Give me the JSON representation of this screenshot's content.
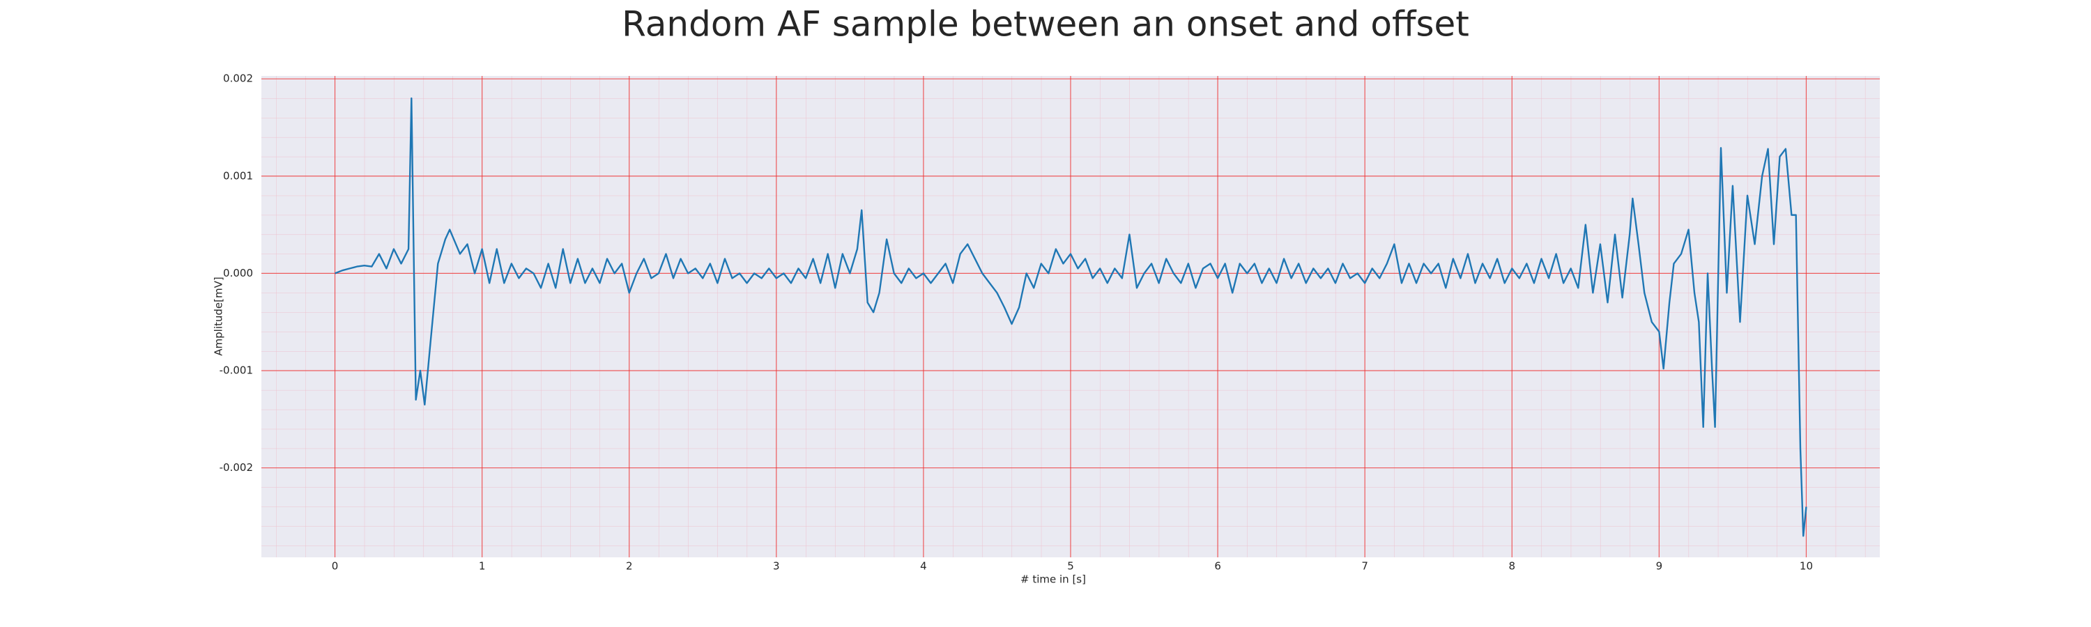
{
  "chart_data": {
    "type": "line",
    "title": "Random AF sample between an onset and offset",
    "xlabel": "# time in [s]",
    "ylabel": "Amplitude[mV]",
    "color": "#1f77b4",
    "x": [
      0,
      0.05,
      0.1,
      0.15,
      0.2,
      0.25,
      0.3,
      0.35,
      0.4,
      0.45,
      0.5,
      0.52,
      0.55,
      0.58,
      0.61,
      0.65,
      0.7,
      0.75,
      0.78,
      0.85,
      0.9,
      0.95,
      1.0,
      1.05,
      1.1,
      1.15,
      1.2,
      1.25,
      1.3,
      1.35,
      1.4,
      1.45,
      1.5,
      1.55,
      1.6,
      1.65,
      1.7,
      1.75,
      1.8,
      1.85,
      1.9,
      1.95,
      2.0,
      2.05,
      2.1,
      2.15,
      2.2,
      2.25,
      2.3,
      2.35,
      2.4,
      2.45,
      2.5,
      2.55,
      2.6,
      2.65,
      2.7,
      2.75,
      2.8,
      2.85,
      2.9,
      2.95,
      3.0,
      3.05,
      3.1,
      3.15,
      3.2,
      3.25,
      3.3,
      3.35,
      3.4,
      3.45,
      3.5,
      3.55,
      3.58,
      3.62,
      3.66,
      3.7,
      3.75,
      3.8,
      3.85,
      3.9,
      3.95,
      4.0,
      4.05,
      4.1,
      4.15,
      4.2,
      4.25,
      4.3,
      4.35,
      4.4,
      4.45,
      4.5,
      4.55,
      4.6,
      4.65,
      4.7,
      4.75,
      4.8,
      4.85,
      4.9,
      4.95,
      5.0,
      5.05,
      5.1,
      5.15,
      5.2,
      5.25,
      5.3,
      5.35,
      5.4,
      5.45,
      5.5,
      5.55,
      5.6,
      5.65,
      5.7,
      5.75,
      5.8,
      5.85,
      5.9,
      5.95,
      6.0,
      6.05,
      6.1,
      6.15,
      6.2,
      6.25,
      6.3,
      6.35,
      6.4,
      6.45,
      6.5,
      6.55,
      6.6,
      6.65,
      6.7,
      6.75,
      6.8,
      6.85,
      6.9,
      6.95,
      7.0,
      7.05,
      7.1,
      7.15,
      7.2,
      7.25,
      7.3,
      7.35,
      7.4,
      7.45,
      7.5,
      7.55,
      7.6,
      7.65,
      7.7,
      7.75,
      7.8,
      7.85,
      7.9,
      7.95,
      8.0,
      8.05,
      8.1,
      8.15,
      8.2,
      8.25,
      8.3,
      8.35,
      8.4,
      8.45,
      8.5,
      8.55,
      8.6,
      8.65,
      8.7,
      8.75,
      8.8,
      8.82,
      8.86,
      8.9,
      8.95,
      9.0,
      9.03,
      9.07,
      9.1,
      9.15,
      9.2,
      9.24,
      9.27,
      9.3,
      9.33,
      9.36,
      9.38,
      9.42,
      9.46,
      9.5,
      9.55,
      9.6,
      9.65,
      9.7,
      9.74,
      9.78,
      9.82,
      9.86,
      9.9,
      9.93,
      9.96,
      9.98,
      10.0
    ],
    "values": [
      0,
      3e-05,
      5e-05,
      7e-05,
      8e-05,
      7e-05,
      0.0002,
      5e-05,
      0.00025,
      0.0001,
      0.00025,
      0.0018,
      -0.0013,
      -0.001,
      -0.00135,
      -0.0007,
      0.0001,
      0.00035,
      0.00045,
      0.0002,
      0.0003,
      0,
      0.00025,
      -0.0001,
      0.00025,
      -0.0001,
      0.0001,
      -5e-05,
      5e-05,
      0,
      -0.00015,
      0.0001,
      -0.00015,
      0.00025,
      -0.0001,
      0.00015,
      -0.0001,
      5e-05,
      -0.0001,
      0.00015,
      0,
      0.0001,
      -0.0002,
      0,
      0.00015,
      -5e-05,
      0,
      0.0002,
      -5e-05,
      0.00015,
      0,
      5e-05,
      -5e-05,
      0.0001,
      -0.0001,
      0.00015,
      -5e-05,
      0,
      -0.0001,
      0,
      -5e-05,
      5e-05,
      -5e-05,
      0,
      -0.0001,
      5e-05,
      -5e-05,
      0.00015,
      -0.0001,
      0.0002,
      -0.00015,
      0.0002,
      0,
      0.00025,
      0.00065,
      -0.0003,
      -0.0004,
      -0.0002,
      0.00035,
      0,
      -0.0001,
      5e-05,
      -5e-05,
      0,
      -0.0001,
      0,
      0.0001,
      -0.0001,
      0.0002,
      0.0003,
      0.00015,
      0,
      -0.0001,
      -0.0002,
      -0.00035,
      -0.00052,
      -0.00035,
      0,
      -0.00015,
      0.0001,
      0,
      0.00025,
      0.0001,
      0.0002,
      5e-05,
      0.00015,
      -5e-05,
      5e-05,
      -0.0001,
      5e-05,
      -5e-05,
      0.0004,
      -0.00015,
      0,
      0.0001,
      -0.0001,
      0.00015,
      0,
      -0.0001,
      0.0001,
      -0.00015,
      5e-05,
      0.0001,
      -5e-05,
      0.0001,
      -0.0002,
      0.0001,
      0,
      0.0001,
      -0.0001,
      5e-05,
      -0.0001,
      0.00015,
      -5e-05,
      0.0001,
      -0.0001,
      5e-05,
      -5e-05,
      5e-05,
      -0.0001,
      0.0001,
      -5e-05,
      0,
      -0.0001,
      5e-05,
      -5e-05,
      0.0001,
      0.0003,
      -0.0001,
      0.0001,
      -0.0001,
      0.0001,
      0,
      0.0001,
      -0.00015,
      0.00015,
      -5e-05,
      0.0002,
      -0.0001,
      0.0001,
      -5e-05,
      0.00015,
      -0.0001,
      5e-05,
      -5e-05,
      0.0001,
      -0.0001,
      0.00015,
      -5e-05,
      0.0002,
      -0.0001,
      5e-05,
      -0.00015,
      0.0005,
      -0.0002,
      0.0003,
      -0.0003,
      0.0004,
      -0.00025,
      0.0004,
      0.00077,
      0.0003,
      -0.0002,
      -0.0005,
      -0.0006,
      -0.00098,
      -0.0003,
      0.0001,
      0.0002,
      0.00045,
      -0.0002,
      -0.0005,
      -0.00158,
      0,
      -0.001,
      -0.00158,
      0.00129,
      -0.0002,
      0.0009,
      -0.0005,
      0.0008,
      0.0003,
      0.001,
      0.00128,
      0.0003,
      0.0012,
      0.00128,
      0.0006,
      0.0006,
      -0.0018,
      -0.0027,
      -0.0024
    ],
    "xlim": [
      -0.5,
      10.5
    ],
    "ylim": [
      -0.00292,
      0.00203
    ],
    "xticks": [
      0,
      1,
      2,
      3,
      4,
      5,
      6,
      7,
      8,
      9,
      10
    ],
    "yticks": [
      -0.002,
      -0.001,
      {
        "value": 0,
        "label": "0.000"
      },
      0.001,
      0.002
    ],
    "grid": true,
    "minor_grid": true
  }
}
